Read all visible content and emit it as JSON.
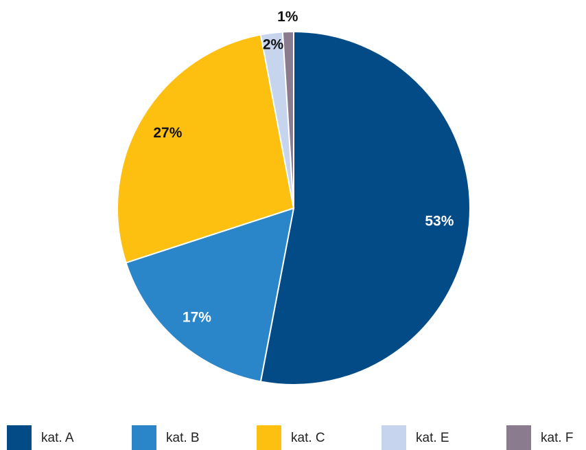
{
  "chart_data": {
    "type": "pie",
    "categories": [
      "kat. A",
      "kat. B",
      "kat. C",
      "kat. E",
      "kat. F"
    ],
    "values": [
      53,
      17,
      27,
      2,
      1
    ],
    "value_labels": [
      "53%",
      "17%",
      "27%",
      "2%",
      "1%"
    ],
    "colors": [
      "#024b86",
      "#2a86c8",
      "#fdc010",
      "#c6d4ee",
      "#8b7b8e"
    ],
    "legend": "bottom"
  }
}
